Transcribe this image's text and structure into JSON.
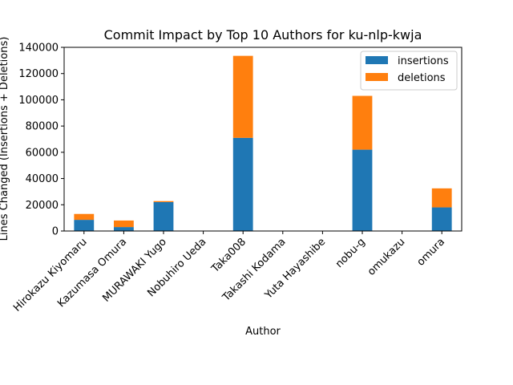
{
  "chart_data": {
    "type": "bar",
    "stacked": true,
    "title": "Commit Impact by Top 10 Authors for ku-nlp-kwja",
    "xlabel": "Author",
    "ylabel": "Lines Changed (Insertions + Deletions)",
    "categories": [
      "Hirokazu Kiyomaru",
      "Kazumasa Omura",
      "MURAWAKI Yugo",
      "Nobuhiro Ueda",
      "Taka008",
      "Takashi Kodama",
      "Yuta Hayashibe",
      "nobu-g",
      "omukazu",
      "omura"
    ],
    "series": [
      {
        "name": "insertions",
        "color": "#1f77b4",
        "values": [
          8500,
          3000,
          22000,
          100,
          71000,
          50,
          100,
          62000,
          50,
          18000
        ]
      },
      {
        "name": "deletions",
        "color": "#ff7f0e",
        "values": [
          4500,
          5000,
          800,
          50,
          62500,
          20,
          50,
          41000,
          20,
          14500
        ]
      }
    ],
    "ylim": [
      0,
      140000
    ],
    "yticks": [
      0,
      20000,
      40000,
      60000,
      80000,
      100000,
      120000,
      140000
    ],
    "grid": false,
    "legend": "upper right"
  }
}
